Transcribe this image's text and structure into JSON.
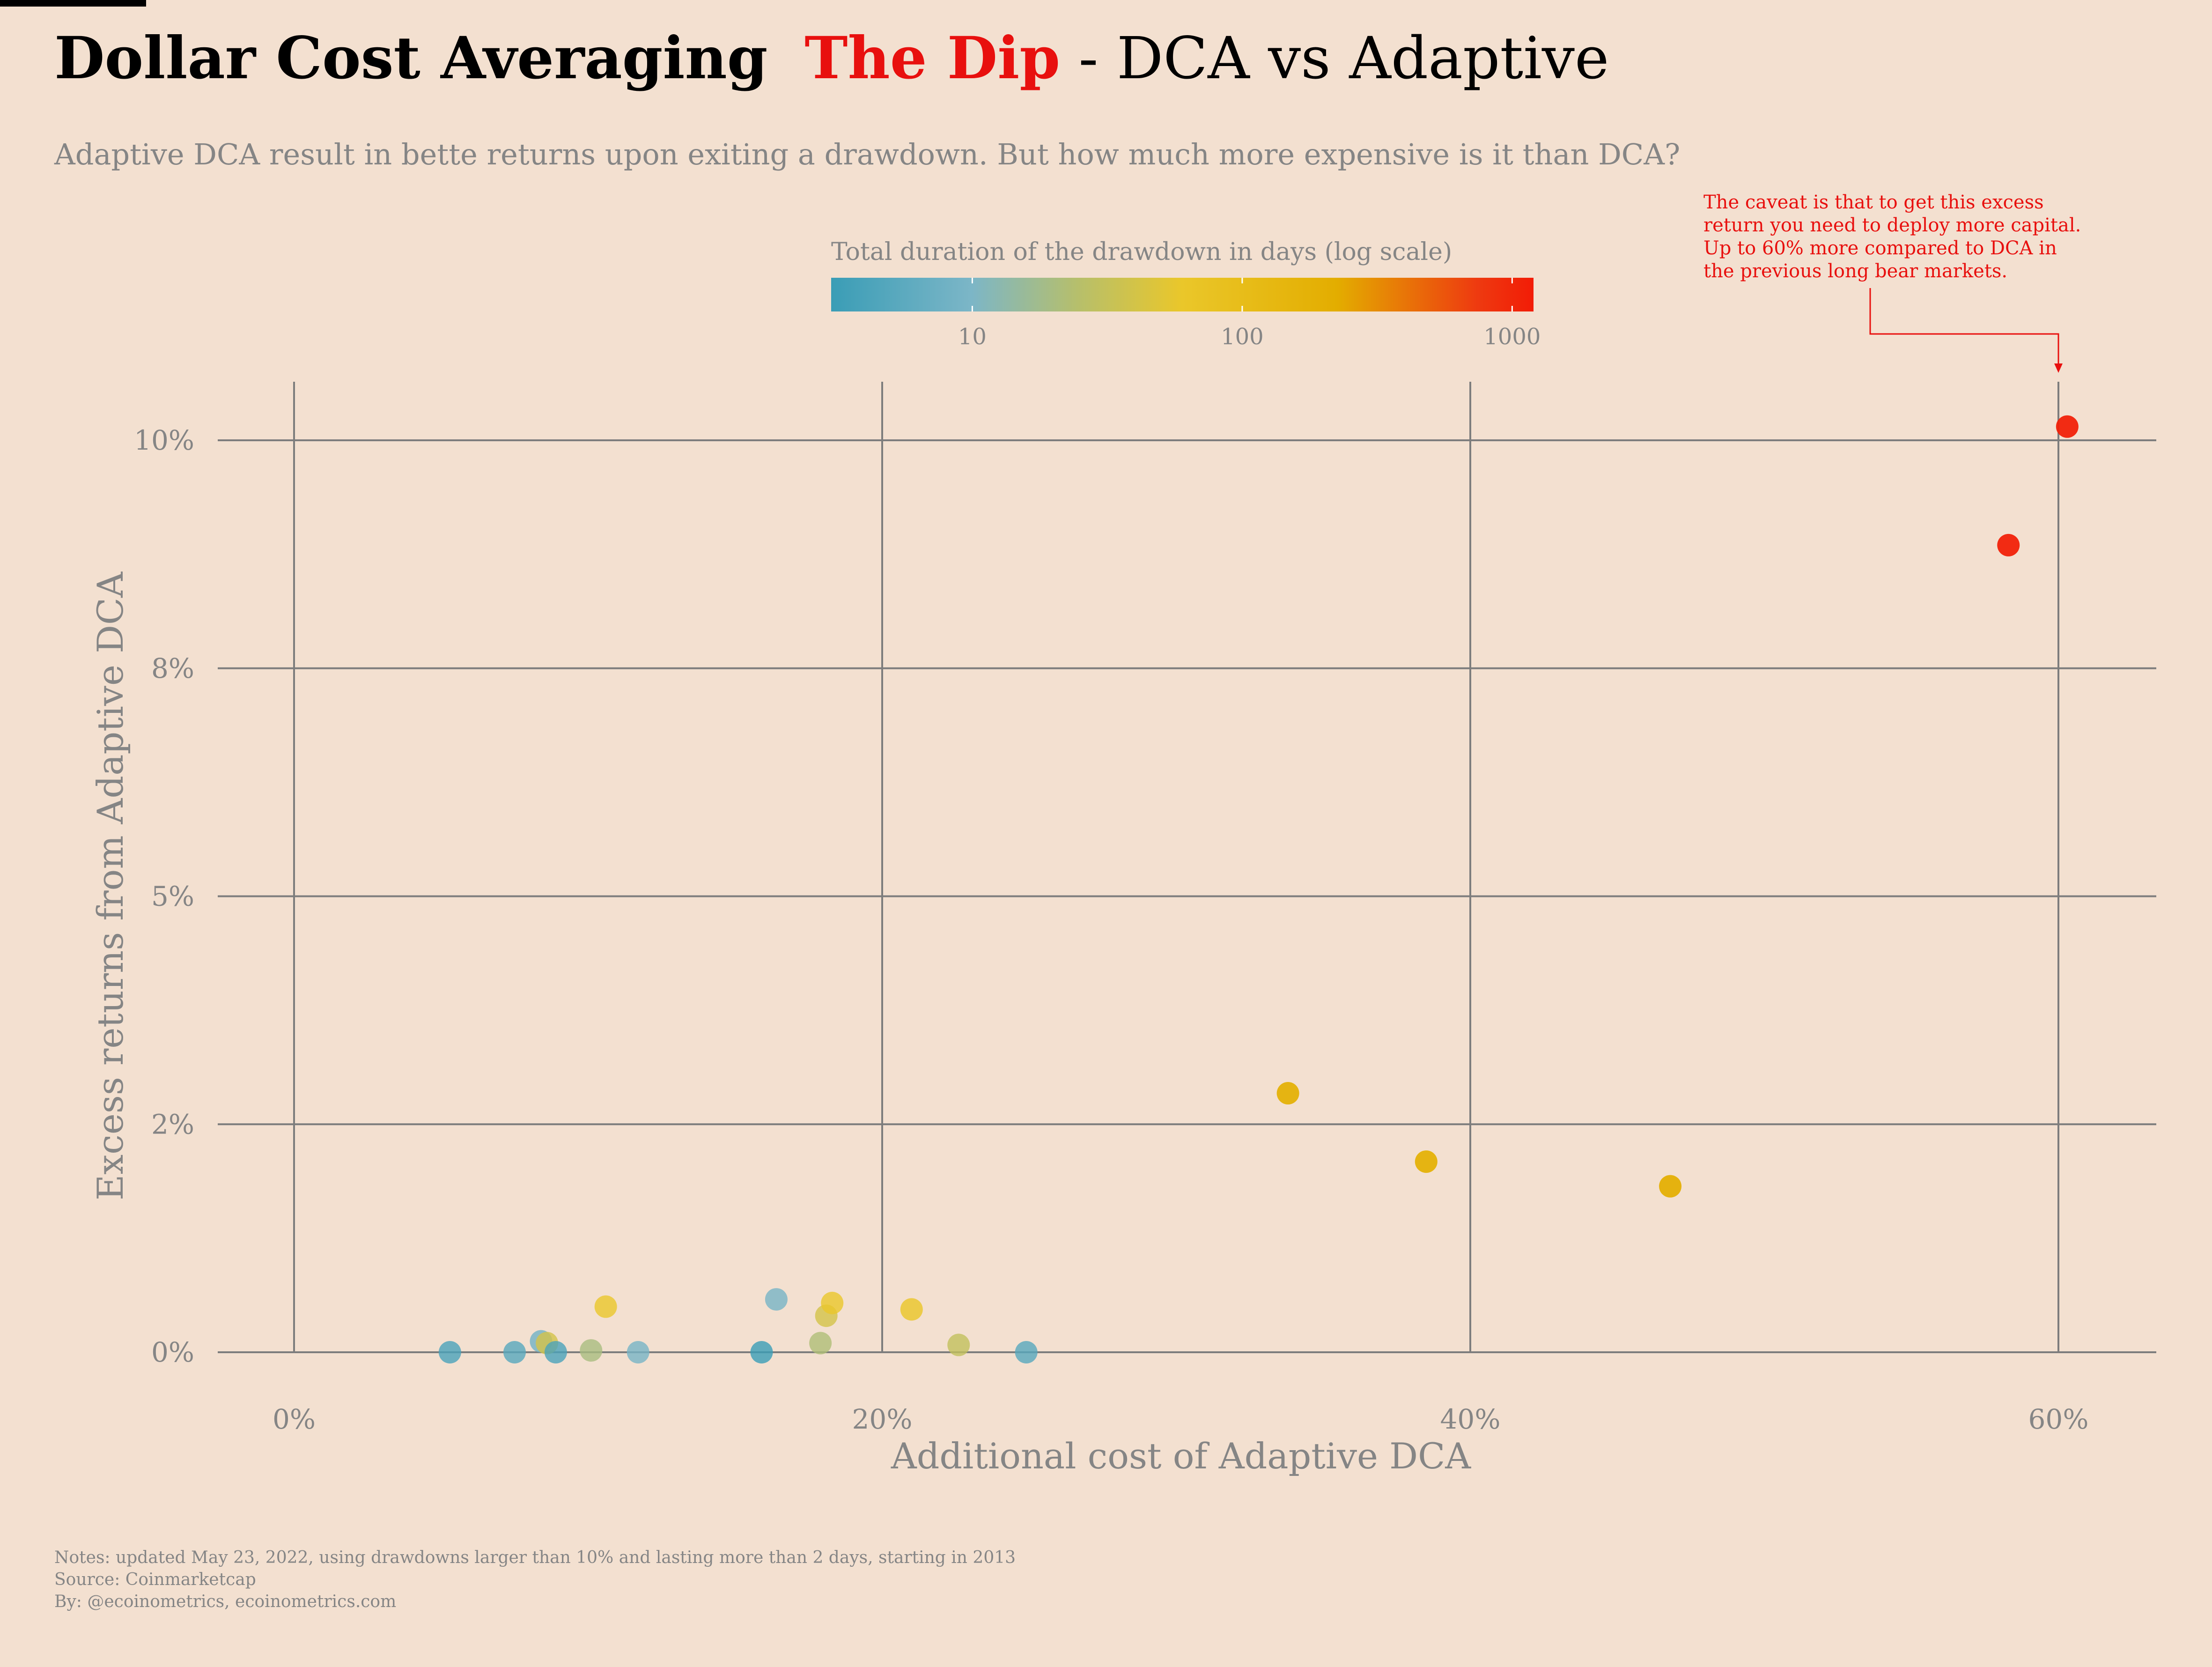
{
  "title": {
    "part1": "Dollar Cost Averaging",
    "part2": "The Dip",
    "part3": " - DCA vs Adaptive"
  },
  "subtitle": "Adaptive DCA result in bette returns upon exiting a drawdown. But how much more expensive is it than DCA?",
  "colors": {
    "background": "#f3e0d0",
    "accent_red": "#e8100e",
    "grid": "#7d7d7d",
    "muted_text": "#858585",
    "scale_stops": [
      "#3a9db6",
      "#7cb6c7",
      "#b6bf6c",
      "#eac72a",
      "#e3ad00",
      "#ee3a10",
      "#f21c06"
    ]
  },
  "annotation": {
    "lines": [
      "The caveat is that to get this excess",
      "return you need to deploy more capital.",
      "Up to 60% more compared to DCA in",
      "the previous long bear markets."
    ]
  },
  "notes": {
    "line1": "Notes: updated May 23, 2022, using drawdowns larger than 10% and lasting more than 2 days, starting in 2013",
    "line2": "Source: Coinmarketcap",
    "line3": "By: @ecoinometrics, ecoinometrics.com"
  },
  "chart_data": {
    "type": "scatter",
    "xlabel": "Additional cost of Adaptive DCA",
    "ylabel": "Excess returns from Adaptive DCA",
    "xlim": [
      -3,
      63
    ],
    "ylim": [
      -0.5,
      10.7
    ],
    "x_ticks": [
      0,
      20,
      40,
      60
    ],
    "x_tick_labels": [
      "0%",
      "20%",
      "40%",
      "60%"
    ],
    "y_ticks": [
      0,
      2.5,
      5,
      7.5,
      10
    ],
    "y_tick_labels": [
      "0%",
      "2%",
      "5%",
      "8%",
      "10%"
    ],
    "grid": true,
    "legend": {
      "title": "Total duration of the drawdown in days (log scale)",
      "placement": "top-center",
      "scale": "log",
      "range": [
        3,
        1200
      ],
      "ticks": [
        10,
        100,
        1000
      ],
      "tick_labels": [
        "10",
        "100",
        "1000"
      ]
    },
    "points": [
      {
        "x": 5.3,
        "y": 0.0,
        "days": 4
      },
      {
        "x": 7.5,
        "y": 0.0,
        "days": 5
      },
      {
        "x": 8.4,
        "y": 0.12,
        "days": 8
      },
      {
        "x": 8.6,
        "y": 0.1,
        "days": 40
      },
      {
        "x": 8.9,
        "y": 0.0,
        "days": 4
      },
      {
        "x": 10.1,
        "y": 0.02,
        "days": 20
      },
      {
        "x": 10.6,
        "y": 0.5,
        "days": 60
      },
      {
        "x": 11.7,
        "y": 0.0,
        "days": 9
      },
      {
        "x": 15.9,
        "y": 0.0,
        "days": 3
      },
      {
        "x": 16.4,
        "y": 0.58,
        "days": 9
      },
      {
        "x": 17.9,
        "y": 0.1,
        "days": 22
      },
      {
        "x": 18.1,
        "y": 0.4,
        "days": 40
      },
      {
        "x": 18.3,
        "y": 0.54,
        "days": 60
      },
      {
        "x": 21.0,
        "y": 0.47,
        "days": 65
      },
      {
        "x": 22.6,
        "y": 0.08,
        "days": 30
      },
      {
        "x": 24.9,
        "y": 0.0,
        "days": 5
      },
      {
        "x": 33.8,
        "y": 2.84,
        "days": 180
      },
      {
        "x": 38.5,
        "y": 2.09,
        "days": 180
      },
      {
        "x": 46.8,
        "y": 1.82,
        "days": 200
      },
      {
        "x": 58.3,
        "y": 8.85,
        "days": 1100
      },
      {
        "x": 60.3,
        "y": 10.15,
        "days": 1100
      }
    ]
  }
}
